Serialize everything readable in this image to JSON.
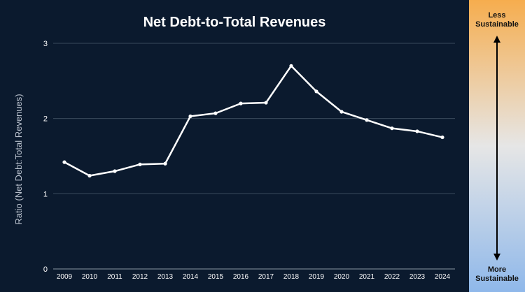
{
  "chart_data": {
    "type": "line",
    "title": "Net Debt-to-Total Revenues",
    "xlabel": "",
    "ylabel": "Ratio (Net Debt:Total Revenues)",
    "x": [
      "2009",
      "2010",
      "2011",
      "2012",
      "2013",
      "2014",
      "2015",
      "2016",
      "2017",
      "2018",
      "2019",
      "2020",
      "2021",
      "2022",
      "2023",
      "2024"
    ],
    "series": [
      {
        "values": [
          1.42,
          1.24,
          1.3,
          1.39,
          1.4,
          2.03,
          2.07,
          2.2,
          2.21,
          2.7,
          2.36,
          2.09,
          1.98,
          1.87,
          1.83,
          1.75
        ]
      }
    ],
    "ylim": [
      0,
      3
    ],
    "yticks": [
      0,
      1,
      2,
      3
    ],
    "grid": true,
    "colors": {
      "background": "#0b1a2e",
      "line": "#ffffff",
      "grid": "#3a4a5c",
      "text": "#ffffff"
    }
  },
  "scale_legend": {
    "top_label": "Less Sustainable",
    "bottom_label": "More Sustainable",
    "colors": {
      "top": "#f6ad4e",
      "middle": "#e6e6e6",
      "bottom": "#8fb8ea",
      "arrow": "#000000"
    }
  }
}
